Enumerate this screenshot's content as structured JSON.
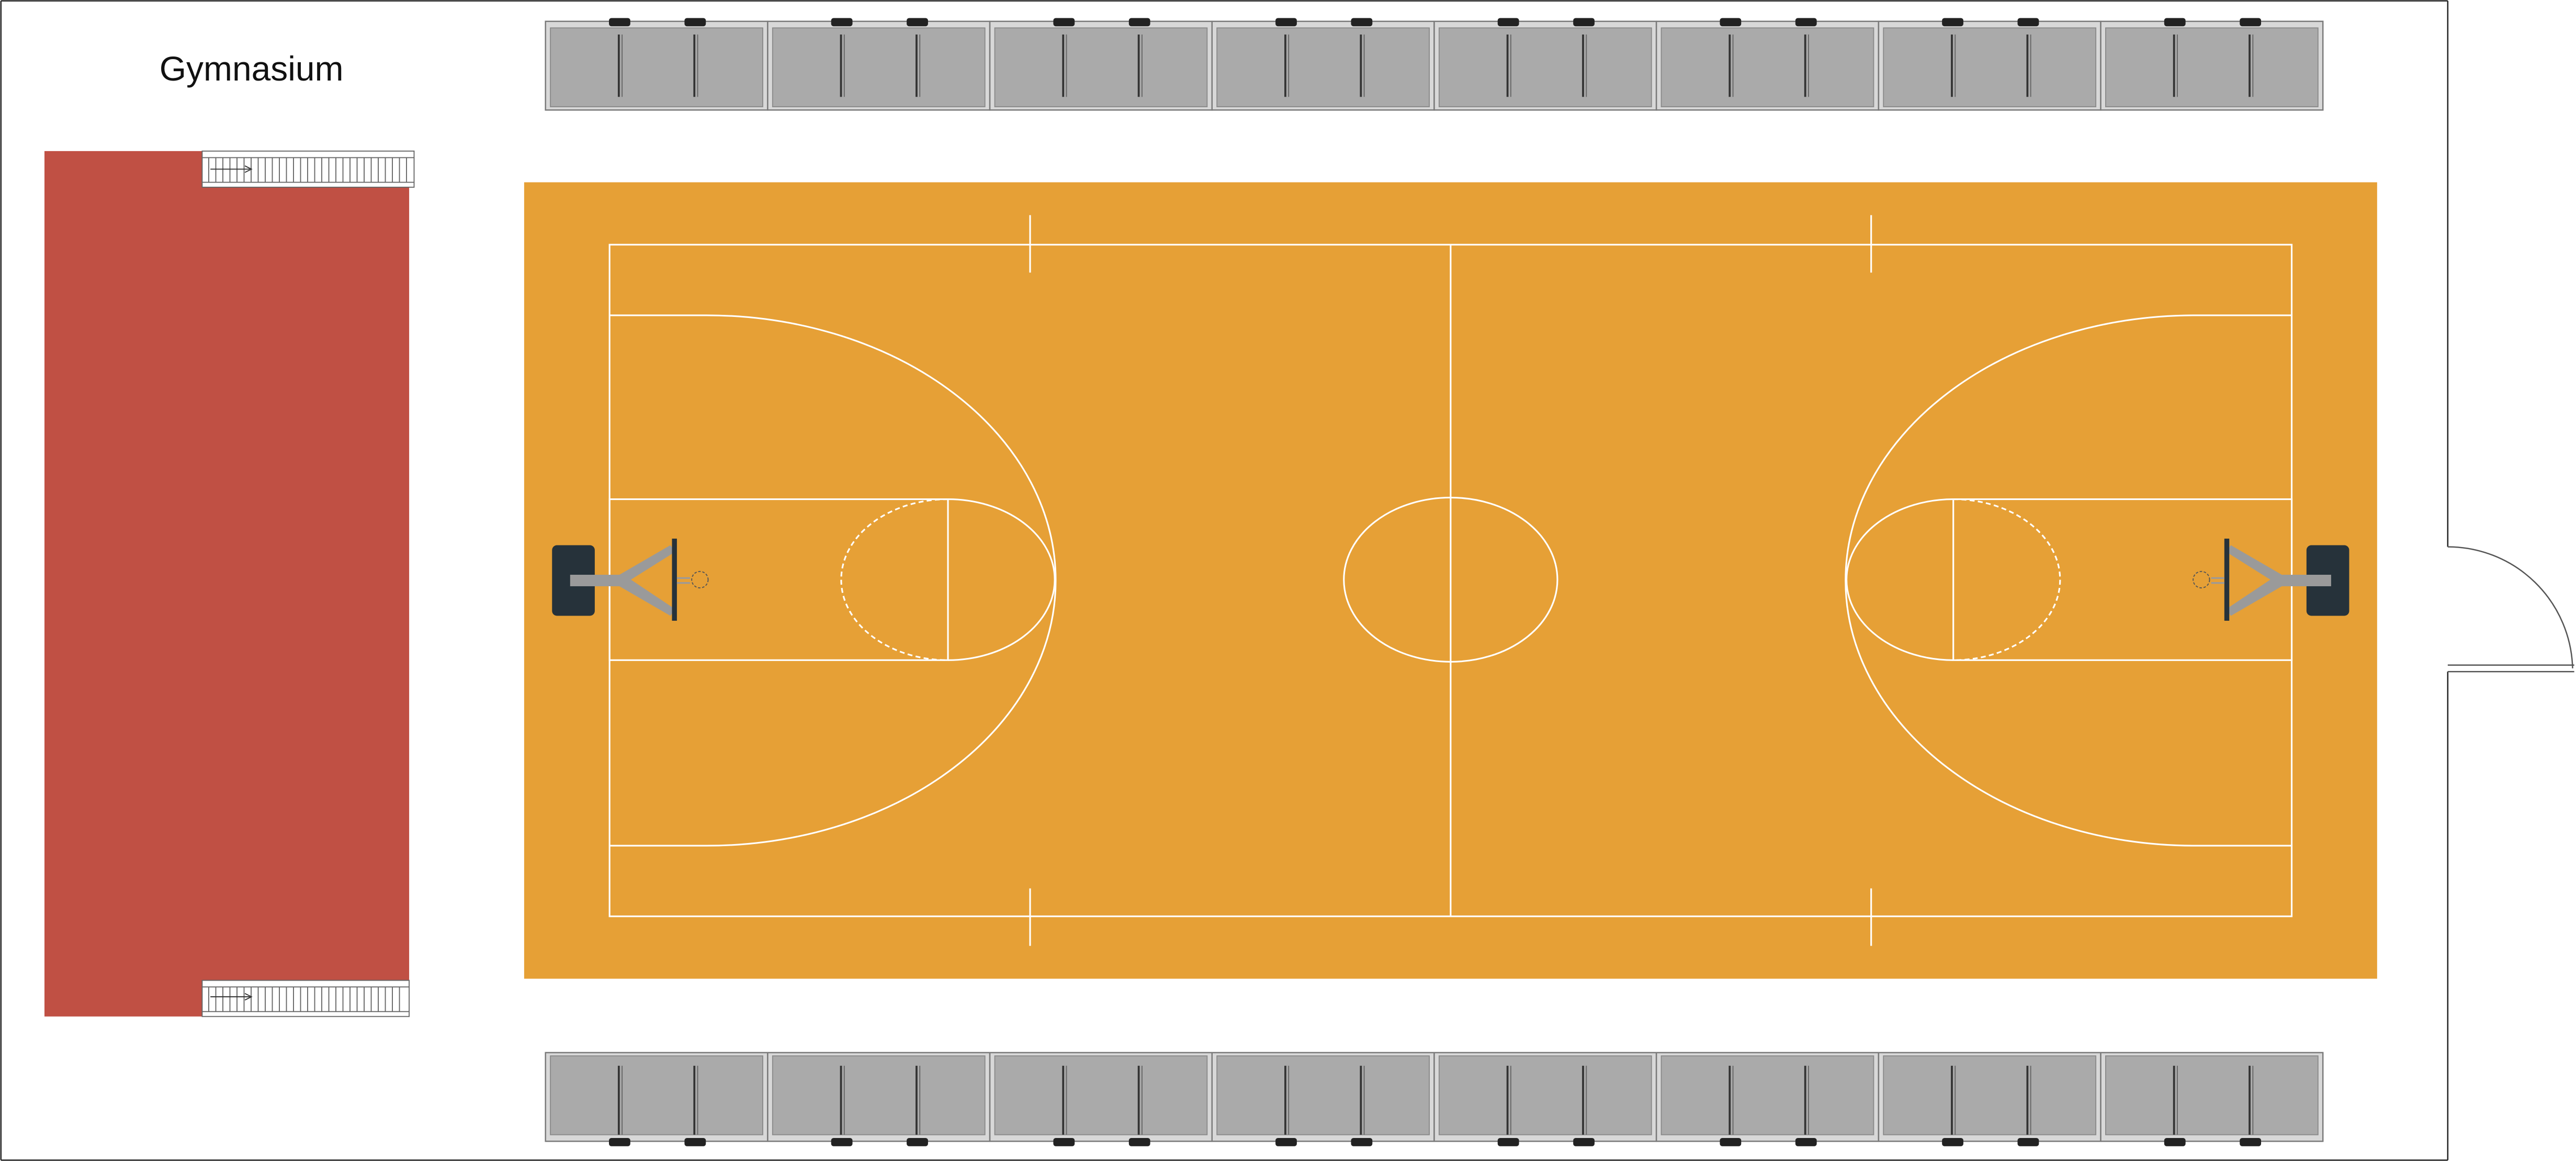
{
  "title": "Gymnasium",
  "colors": {
    "court": "#E6A036",
    "court_lines": "#FFFFFF",
    "stage": "#C05044",
    "bench": "#AAAAAA",
    "bench_frame": "#7A7A7A",
    "backboard_base": "#26323A",
    "hoop_arm": "#9A9A9A",
    "wall": "#222222"
  },
  "features": {
    "court": "basketball-court",
    "stage": "raised-stage",
    "stairs": [
      "stage-stair-top",
      "stage-stair-bottom"
    ],
    "door": "entrance-door",
    "hoops": [
      "left-hoop",
      "right-hoop"
    ]
  },
  "bleachers": {
    "top_count": 8,
    "bottom_count": 8
  }
}
